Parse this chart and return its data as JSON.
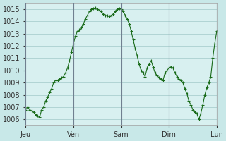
{
  "bg_color": "#c8e8e8",
  "plot_bg_color": "#d8f0f0",
  "grid_color": "#a0c8c8",
  "line_color": "#1a6b1a",
  "marker_color": "#1a6b1a",
  "ylim": [
    1005.5,
    1015.5
  ],
  "yticks": [
    1006,
    1007,
    1008,
    1009,
    1010,
    1011,
    1012,
    1013,
    1014,
    1015
  ],
  "day_labels": [
    "Jeu",
    "Ven",
    "Sam",
    "Dim",
    "Lun"
  ],
  "title": "",
  "ylabel": "",
  "time_values": [
    0,
    1,
    2,
    3,
    4,
    5,
    6,
    7,
    8,
    9,
    10,
    11,
    12,
    13,
    14,
    15,
    16,
    17,
    18,
    19,
    20,
    21,
    22,
    23,
    24,
    25,
    26,
    27,
    28,
    29,
    30,
    31,
    32,
    33,
    34,
    35,
    36,
    37,
    38,
    39,
    40,
    41,
    42,
    43,
    44,
    45,
    46,
    47,
    48,
    49,
    50,
    51,
    52,
    53,
    54,
    55,
    56,
    57,
    58,
    59,
    60,
    61,
    62,
    63,
    64,
    65,
    66,
    67,
    68,
    69,
    70,
    71,
    72,
    73,
    74,
    75,
    76,
    77,
    78,
    79,
    80,
    81,
    82,
    83,
    84,
    85,
    86,
    87,
    88,
    89,
    90,
    91,
    92,
    93,
    94,
    95,
    96
  ],
  "pressure_values": [
    1006.8,
    1007.0,
    1006.8,
    1006.7,
    1006.6,
    1006.4,
    1006.3,
    1006.2,
    1006.8,
    1007.0,
    1007.5,
    1007.8,
    1008.2,
    1008.5,
    1009.0,
    1009.2,
    1009.2,
    1009.3,
    1009.4,
    1009.5,
    1009.8,
    1010.2,
    1010.8,
    1011.5,
    1012.2,
    1012.8,
    1013.2,
    1013.3,
    1013.5,
    1013.8,
    1014.2,
    1014.5,
    1014.8,
    1015.0,
    1015.05,
    1015.1,
    1015.0,
    1014.9,
    1014.8,
    1014.6,
    1014.5,
    1014.45,
    1014.4,
    1014.5,
    1014.6,
    1014.8,
    1015.0,
    1015.05,
    1015.0,
    1014.8,
    1014.5,
    1014.2,
    1013.8,
    1013.2,
    1012.5,
    1011.8,
    1011.2,
    1010.5,
    1010.0,
    1009.8,
    1009.5,
    1010.2,
    1010.5,
    1010.8,
    1010.3,
    1009.8,
    1009.6,
    1009.4,
    1009.3,
    1009.2,
    1009.8,
    1010.0,
    1010.2,
    1010.3,
    1010.2,
    1009.8,
    1009.5,
    1009.3,
    1009.2,
    1009.0,
    1008.5,
    1008.1,
    1007.5,
    1007.2,
    1006.8,
    1006.6,
    1006.5,
    1006.0,
    1006.5,
    1007.2,
    1008.0,
    1008.6,
    1009.0,
    1009.5,
    1011.0,
    1012.2,
    1013.2
  ],
  "day_tick_positions": [
    0,
    24,
    48,
    72,
    96
  ]
}
